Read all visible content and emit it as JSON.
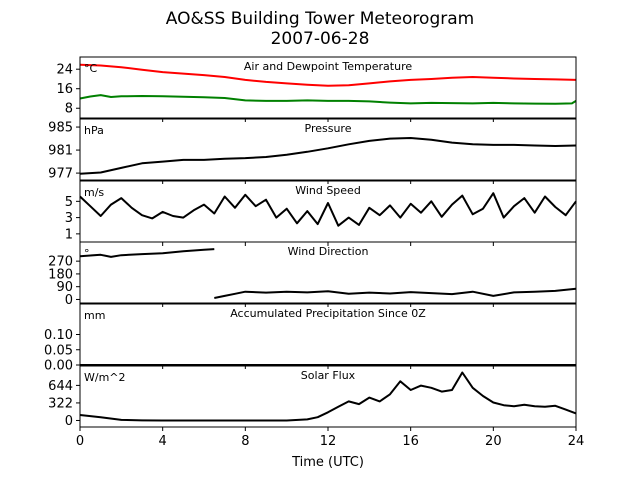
{
  "figure": {
    "title_line1": "AO&SS Building Tower Meteorogram",
    "title_line2": "2007-06-28",
    "xlabel": "Time (UTC)"
  },
  "chart_data": [
    {
      "type": "line",
      "title": "Air and Dewpoint Temperature",
      "unit": "°C",
      "xlim": [
        0,
        24
      ],
      "ylim": [
        4,
        29
      ],
      "yticks": [
        8,
        16,
        24
      ],
      "series": [
        {
          "color": "#ff0000",
          "points": [
            [
              0,
              25.8
            ],
            [
              1,
              25.5
            ],
            [
              2,
              24.8
            ],
            [
              3,
              23.8
            ],
            [
              4,
              22.8
            ],
            [
              5,
              22.2
            ],
            [
              6,
              21.6
            ],
            [
              7,
              20.8
            ],
            [
              8,
              19.6
            ],
            [
              9,
              18.8
            ],
            [
              10,
              18.2
            ],
            [
              11,
              17.6
            ],
            [
              12,
              17.2
            ],
            [
              13,
              17.4
            ],
            [
              14,
              18.2
            ],
            [
              15,
              19.0
            ],
            [
              16,
              19.6
            ],
            [
              17,
              20.0
            ],
            [
              18,
              20.5
            ],
            [
              19,
              20.8
            ],
            [
              20,
              20.5
            ],
            [
              21,
              20.2
            ],
            [
              22,
              20.0
            ],
            [
              23,
              19.8
            ],
            [
              24,
              19.6
            ]
          ]
        },
        {
          "color": "#008000",
          "points": [
            [
              0,
              12.0
            ],
            [
              0.5,
              12.8
            ],
            [
              1,
              13.4
            ],
            [
              1.5,
              12.6
            ],
            [
              2,
              12.9
            ],
            [
              3,
              13.0
            ],
            [
              4,
              12.9
            ],
            [
              5,
              12.7
            ],
            [
              6,
              12.5
            ],
            [
              7,
              12.2
            ],
            [
              8,
              11.2
            ],
            [
              9,
              11.0
            ],
            [
              10,
              11.0
            ],
            [
              11,
              11.2
            ],
            [
              12,
              11.0
            ],
            [
              13,
              11.0
            ],
            [
              14,
              10.8
            ],
            [
              15,
              10.3
            ],
            [
              16,
              10.0
            ],
            [
              17,
              10.2
            ],
            [
              18,
              10.1
            ],
            [
              19,
              10.0
            ],
            [
              20,
              10.2
            ],
            [
              21,
              10.0
            ],
            [
              22,
              9.9
            ],
            [
              23,
              9.8
            ],
            [
              23.8,
              10.0
            ],
            [
              24,
              11.0
            ]
          ]
        }
      ]
    },
    {
      "type": "line",
      "title": "Pressure",
      "unit": "hPa",
      "xlim": [
        0,
        24
      ],
      "ylim": [
        975.8,
        986.4
      ],
      "yticks": [
        977,
        981,
        985
      ],
      "series": [
        {
          "color": "#000000",
          "points": [
            [
              0,
              976.9
            ],
            [
              1,
              977.1
            ],
            [
              2,
              977.9
            ],
            [
              3,
              978.7
            ],
            [
              4,
              979.0
            ],
            [
              5,
              979.3
            ],
            [
              6,
              979.3
            ],
            [
              7,
              979.5
            ],
            [
              8,
              979.6
            ],
            [
              9,
              979.8
            ],
            [
              10,
              980.2
            ],
            [
              11,
              980.7
            ],
            [
              12,
              981.3
            ],
            [
              13,
              982.0
            ],
            [
              14,
              982.6
            ],
            [
              15,
              983.0
            ],
            [
              16,
              983.1
            ],
            [
              17,
              982.8
            ],
            [
              18,
              982.3
            ],
            [
              19,
              982.0
            ],
            [
              20,
              981.9
            ],
            [
              21,
              981.9
            ],
            [
              22,
              981.8
            ],
            [
              23,
              981.7
            ],
            [
              24,
              981.8
            ]
          ]
        }
      ]
    },
    {
      "type": "line",
      "title": "Wind Speed",
      "unit": "m/s",
      "xlim": [
        0,
        24
      ],
      "ylim": [
        0,
        7.5
      ],
      "yticks": [
        1,
        3,
        5
      ],
      "series": [
        {
          "color": "#000000",
          "points": [
            [
              0,
              5.6
            ],
            [
              0.5,
              4.4
            ],
            [
              1,
              3.2
            ],
            [
              1.5,
              4.6
            ],
            [
              2,
              5.4
            ],
            [
              2.5,
              4.2
            ],
            [
              3,
              3.3
            ],
            [
              3.5,
              2.9
            ],
            [
              4,
              3.7
            ],
            [
              4.5,
              3.2
            ],
            [
              5,
              3.0
            ],
            [
              5.5,
              3.9
            ],
            [
              6,
              4.6
            ],
            [
              6.5,
              3.5
            ],
            [
              7,
              5.6
            ],
            [
              7.5,
              4.2
            ],
            [
              8,
              5.8
            ],
            [
              8.5,
              4.4
            ],
            [
              9,
              5.2
            ],
            [
              9.5,
              3.0
            ],
            [
              10,
              4.1
            ],
            [
              10.5,
              2.3
            ],
            [
              11,
              3.8
            ],
            [
              11.5,
              2.2
            ],
            [
              12,
              4.8
            ],
            [
              12.5,
              2.0
            ],
            [
              13,
              3.0
            ],
            [
              13.5,
              2.1
            ],
            [
              14,
              4.2
            ],
            [
              14.5,
              3.3
            ],
            [
              15,
              4.5
            ],
            [
              15.5,
              3.0
            ],
            [
              16,
              4.7
            ],
            [
              16.5,
              3.6
            ],
            [
              17,
              5.0
            ],
            [
              17.5,
              3.1
            ],
            [
              18,
              4.6
            ],
            [
              18.5,
              5.7
            ],
            [
              19,
              3.4
            ],
            [
              19.5,
              4.1
            ],
            [
              20,
              6.0
            ],
            [
              20.5,
              3.0
            ],
            [
              21,
              4.4
            ],
            [
              21.5,
              5.4
            ],
            [
              22,
              3.6
            ],
            [
              22.5,
              5.6
            ],
            [
              23,
              4.3
            ],
            [
              23.5,
              3.3
            ],
            [
              24,
              5.0
            ]
          ]
        }
      ]
    },
    {
      "type": "line",
      "title": "Wind Direction",
      "unit": "°",
      "xlim": [
        0,
        24
      ],
      "ylim": [
        -25,
        405
      ],
      "yticks": [
        0,
        90,
        180,
        270
      ],
      "series": [
        {
          "color": "#000000",
          "points": [
            [
              0,
              305
            ],
            [
              1,
              315
            ],
            [
              1.5,
              300
            ],
            [
              2,
              312
            ],
            [
              3,
              320
            ],
            [
              4,
              325
            ],
            [
              5,
              340
            ],
            [
              5.5,
              345
            ],
            [
              6,
              350
            ],
            [
              6.5,
              355
            ]
          ]
        },
        {
          "color": "#000000",
          "points": [
            [
              6.5,
              10
            ],
            [
              7,
              25
            ],
            [
              7.5,
              40
            ],
            [
              8,
              55
            ],
            [
              9,
              48
            ],
            [
              10,
              55
            ],
            [
              11,
              50
            ],
            [
              12,
              58
            ],
            [
              13,
              40
            ],
            [
              14,
              48
            ],
            [
              15,
              42
            ],
            [
              16,
              52
            ],
            [
              17,
              45
            ],
            [
              18,
              38
            ],
            [
              19,
              55
            ],
            [
              20,
              25
            ],
            [
              21,
              50
            ],
            [
              22,
              55
            ],
            [
              23,
              60
            ],
            [
              24,
              75
            ]
          ]
        }
      ]
    },
    {
      "type": "line",
      "title": "Accumulated Precipitation Since 0Z",
      "unit": "mm",
      "xlim": [
        0,
        24
      ],
      "ylim": [
        0,
        0.2
      ],
      "yticks": [
        0.0,
        0.05,
        0.1
      ],
      "series": [
        {
          "color": "#000000",
          "points": [
            [
              0,
              0.0
            ],
            [
              24,
              0.0
            ]
          ]
        }
      ]
    },
    {
      "type": "line",
      "title": "Solar Flux",
      "unit": "W/m^2",
      "xlim": [
        0,
        24
      ],
      "ylim": [
        -120,
        1000
      ],
      "yticks": [
        0,
        322,
        644
      ],
      "series": [
        {
          "color": "#000000",
          "points": [
            [
              0,
              100
            ],
            [
              1,
              60
            ],
            [
              2,
              10
            ],
            [
              3,
              2
            ],
            [
              4,
              0
            ],
            [
              5,
              0
            ],
            [
              6,
              0
            ],
            [
              7,
              0
            ],
            [
              8,
              0
            ],
            [
              9,
              0
            ],
            [
              10,
              0
            ],
            [
              11,
              20
            ],
            [
              11.5,
              60
            ],
            [
              12,
              150
            ],
            [
              12.5,
              250
            ],
            [
              13,
              350
            ],
            [
              13.5,
              300
            ],
            [
              14,
              420
            ],
            [
              14.5,
              350
            ],
            [
              15,
              480
            ],
            [
              15.5,
              720
            ],
            [
              16,
              560
            ],
            [
              16.5,
              640
            ],
            [
              17,
              600
            ],
            [
              17.5,
              530
            ],
            [
              18,
              560
            ],
            [
              18.5,
              880
            ],
            [
              19,
              600
            ],
            [
              19.5,
              450
            ],
            [
              20,
              330
            ],
            [
              20.5,
              280
            ],
            [
              21,
              260
            ],
            [
              21.5,
              290
            ],
            [
              22,
              260
            ],
            [
              22.5,
              250
            ],
            [
              23,
              270
            ],
            [
              23.5,
              200
            ],
            [
              24,
              130
            ]
          ]
        }
      ]
    }
  ]
}
